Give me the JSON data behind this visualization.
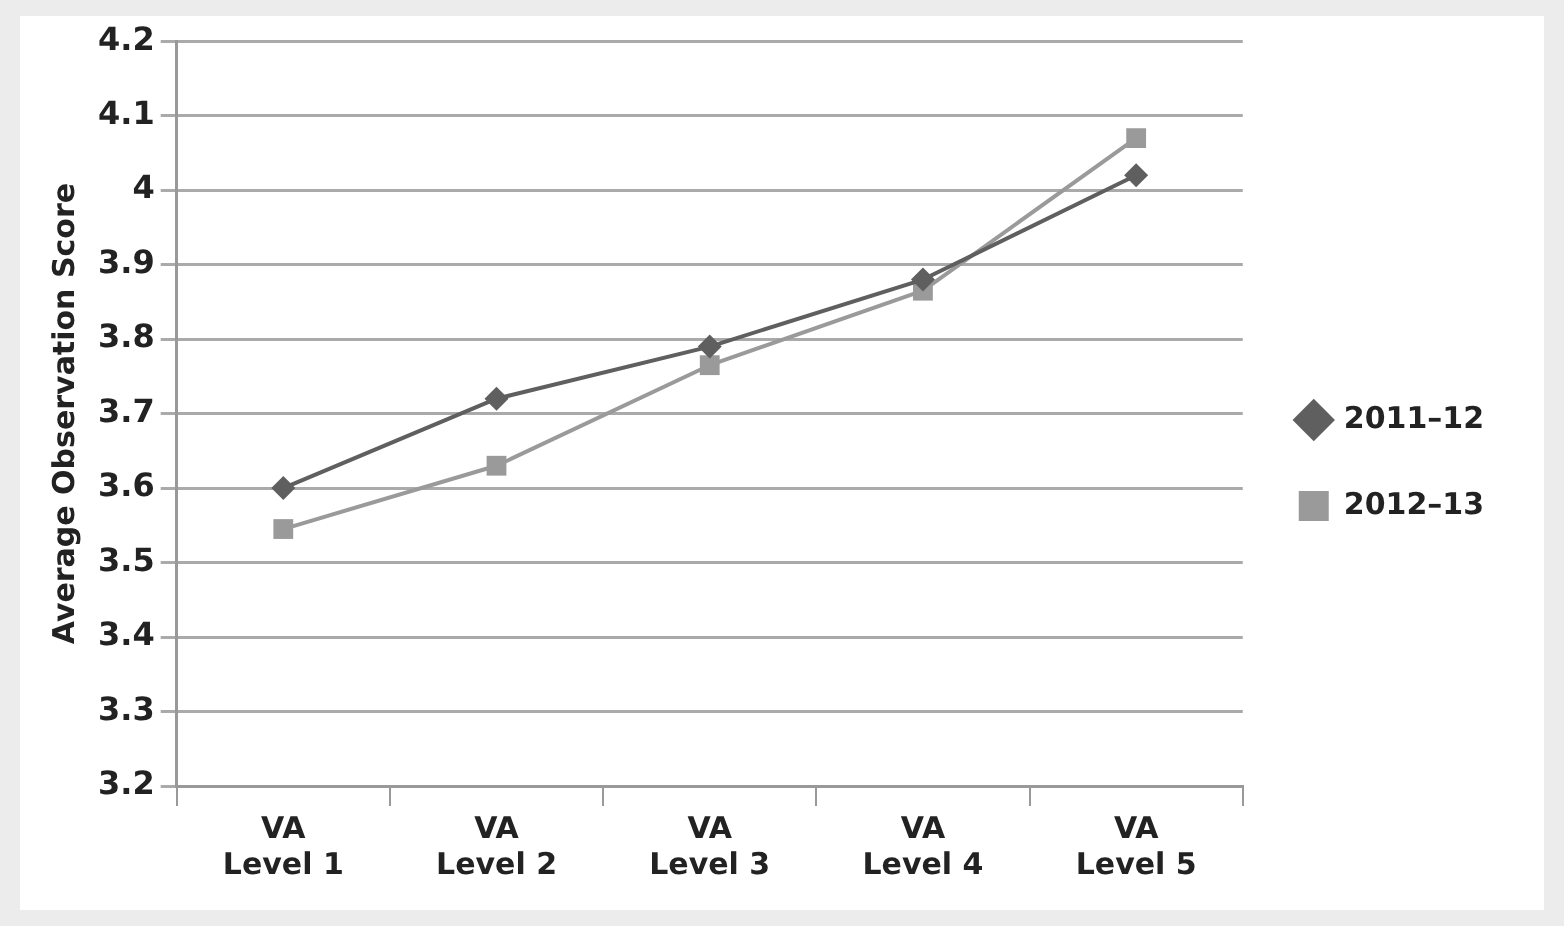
{
  "chart_data": {
    "type": "line",
    "ylabel": "Average Observation Score",
    "categories": [
      "VA Level 1",
      "VA Level 2",
      "VA Level 3",
      "VA Level 4",
      "VA Level 5"
    ],
    "series": [
      {
        "name": "2011–12",
        "color": "#5f5f5f",
        "marker": "diamond",
        "values": [
          3.6,
          3.72,
          3.79,
          3.88,
          4.02
        ]
      },
      {
        "name": "2012–13",
        "color": "#9a9a9a",
        "marker": "square",
        "values": [
          3.545,
          3.63,
          3.765,
          3.865,
          4.07
        ]
      }
    ],
    "ylim": [
      3.2,
      4.2
    ],
    "yticks": [
      3.2,
      3.3,
      3.4,
      3.5,
      3.6,
      3.7,
      3.8,
      3.9,
      4,
      4.1,
      4.2
    ],
    "grid": "y",
    "legend": "right"
  }
}
